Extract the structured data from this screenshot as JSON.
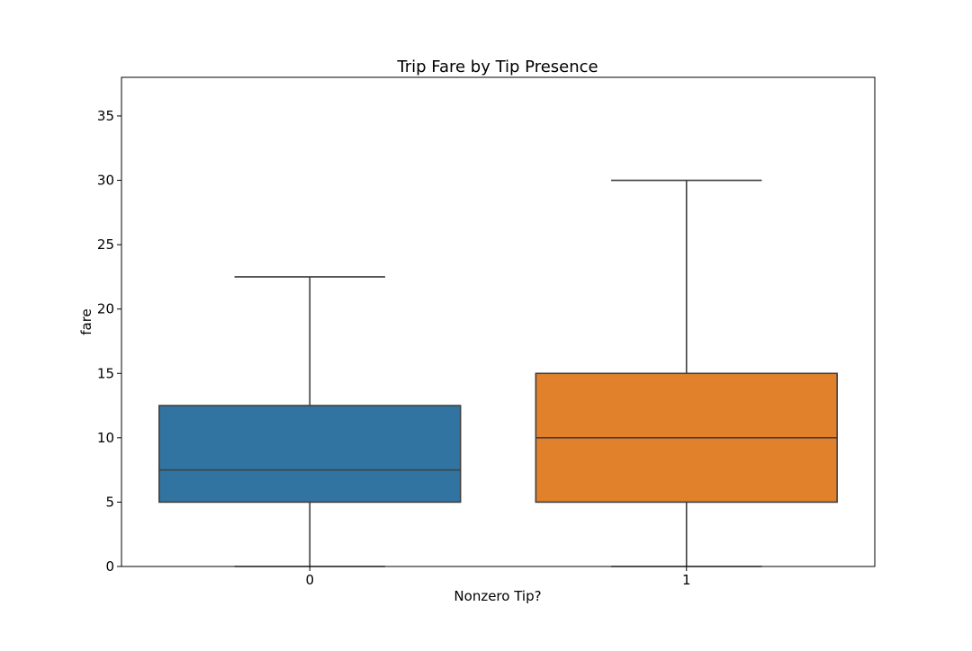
{
  "chart_data": {
    "type": "box",
    "title": "Trip Fare by Tip Presence",
    "xlabel": "Nonzero Tip?",
    "ylabel": "fare",
    "categories": [
      "0",
      "1"
    ],
    "ylim": [
      0,
      38
    ],
    "yticks": [
      0,
      5,
      10,
      15,
      20,
      25,
      30,
      35
    ],
    "grid": false,
    "boxes": [
      {
        "category": "0",
        "whisker_low": 0,
        "q1": 5,
        "median": 7.5,
        "q3": 12.5,
        "whisker_high": 22.5,
        "color": "#3274a1"
      },
      {
        "category": "1",
        "whisker_low": 0,
        "q1": 5,
        "median": 10,
        "q3": 15,
        "whisker_high": 30,
        "color": "#e1812c"
      }
    ]
  },
  "colors": {
    "line": "#3f3f3f",
    "axes": "#000000"
  }
}
